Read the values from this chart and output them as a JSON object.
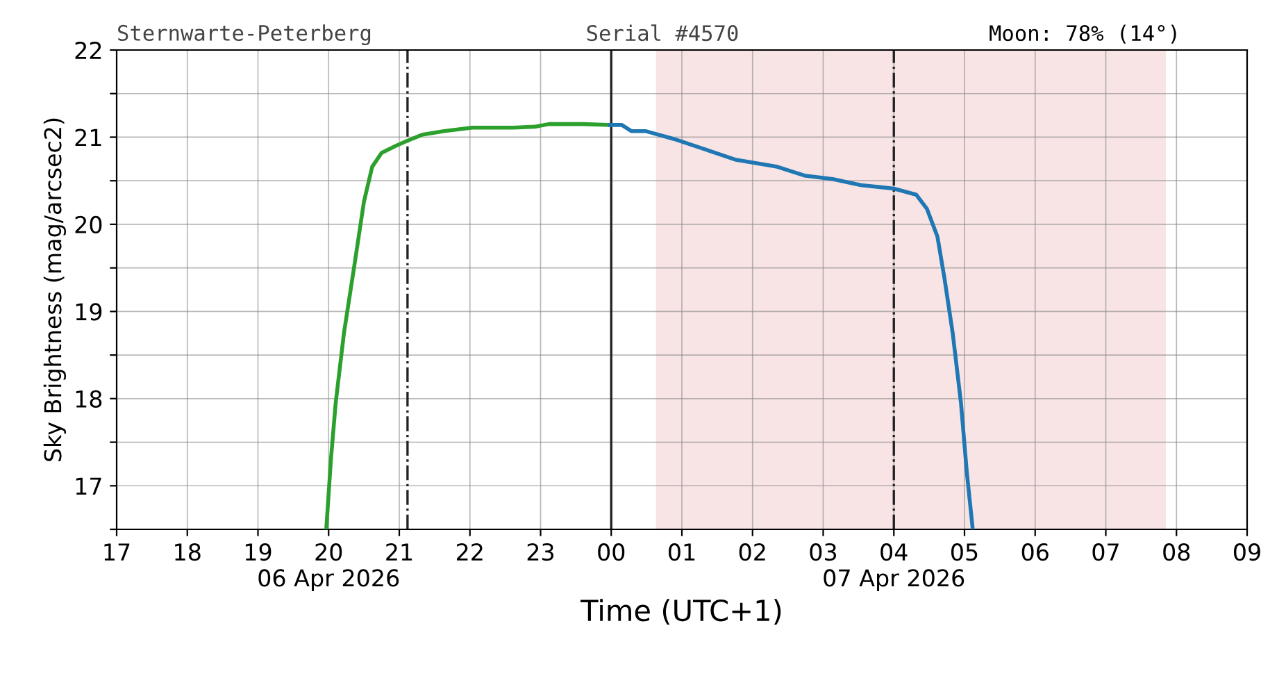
{
  "chart_data": {
    "type": "line",
    "ylabel": "Sky Brightness (mag/arcsec2)",
    "xlabel": "Time (UTC+1)",
    "annotations": [
      "Sternwarte-Peterberg",
      "Serial #4570",
      "Moon: 78% (14°)"
    ],
    "series": [
      {
        "color": "#2ca02c",
        "x": [
          "2026-04-06T19:58",
          "2026-04-06T20:02",
          "2026-04-06T20:06",
          "2026-04-06T20:13",
          "2026-04-06T20:22",
          "2026-04-06T20:30",
          "2026-04-06T20:37",
          "2026-04-06T20:45",
          "2026-04-06T20:57",
          "2026-04-06T21:07",
          "2026-04-06T21:20",
          "2026-04-06T21:38",
          "2026-04-06T22:02",
          "2026-04-06T22:37",
          "2026-04-06T22:55",
          "2026-04-06T23:07",
          "2026-04-06T23:36",
          "2026-04-06T23:59"
        ],
        "values": [
          16.5,
          17.31,
          17.95,
          18.75,
          19.54,
          20.26,
          20.66,
          20.82,
          20.9,
          20.96,
          21.03,
          21.07,
          21.11,
          21.11,
          21.12,
          21.15,
          21.15,
          21.14
        ]
      },
      {
        "color": "#1f77b4",
        "x": [
          "2026-04-06T23:59",
          "2026-04-07T00:09",
          "2026-04-07T00:17",
          "2026-04-07T00:29",
          "2026-04-07T00:53",
          "2026-04-07T01:22",
          "2026-04-07T01:46",
          "2026-04-07T02:21",
          "2026-04-07T02:44",
          "2026-04-07T03:08",
          "2026-04-07T03:32",
          "2026-04-07T04:00",
          "2026-04-07T04:19",
          "2026-04-07T04:28",
          "2026-04-07T04:37",
          "2026-04-07T04:43",
          "2026-04-07T04:50",
          "2026-04-07T04:57",
          "2026-04-07T05:02",
          "2026-04-07T05:07"
        ],
        "values": [
          21.14,
          21.14,
          21.07,
          21.07,
          20.98,
          20.85,
          20.74,
          20.66,
          20.56,
          20.52,
          20.45,
          20.41,
          20.34,
          20.18,
          19.86,
          19.38,
          18.75,
          17.95,
          17.15,
          16.5
        ]
      }
    ],
    "xlim": [
      "2026-04-06T17:00",
      "2026-04-07T09:00"
    ],
    "xticks": [
      {
        "value": "2026-04-06T17:00",
        "label": "17"
      },
      {
        "value": "2026-04-06T18:00",
        "label": "18"
      },
      {
        "value": "2026-04-06T19:00",
        "label": "19"
      },
      {
        "value": "2026-04-06T20:00",
        "label": "20\n06 Apr 2026"
      },
      {
        "value": "2026-04-06T21:00",
        "label": "21"
      },
      {
        "value": "2026-04-06T22:00",
        "label": "22"
      },
      {
        "value": "2026-04-06T23:00",
        "label": "23"
      },
      {
        "value": "2026-04-07T00:00",
        "label": "00"
      },
      {
        "value": "2026-04-07T01:00",
        "label": "01"
      },
      {
        "value": "2026-04-07T02:00",
        "label": "02"
      },
      {
        "value": "2026-04-07T03:00",
        "label": "03"
      },
      {
        "value": "2026-04-07T04:00",
        "label": "04\n07 Apr 2026"
      },
      {
        "value": "2026-04-07T05:00",
        "label": "05"
      },
      {
        "value": "2026-04-07T06:00",
        "label": "06"
      },
      {
        "value": "2026-04-07T07:00",
        "label": "07"
      },
      {
        "value": "2026-04-07T08:00",
        "label": "08"
      },
      {
        "value": "2026-04-07T09:00",
        "label": "09"
      }
    ],
    "ylim": [
      16.5,
      22
    ],
    "yticks": [
      {
        "value": 16.5,
        "label": null
      },
      17,
      {
        "value": 17.5,
        "label": null
      },
      18,
      {
        "value": 18.5,
        "label": null
      },
      19,
      {
        "value": 19.5,
        "label": null
      },
      20,
      {
        "value": 20.5,
        "label": null
      },
      21,
      {
        "value": 21.5,
        "label": null
      },
      22
    ],
    "ref_lines": [
      {
        "axis": "x",
        "value": "2026-04-06T21:07",
        "color": "#222222",
        "line_style": "dashdot"
      },
      {
        "axis": "x",
        "value": "2026-04-07T00:00",
        "color": "#222222",
        "line_style": "solid"
      },
      {
        "axis": "x",
        "value": "2026-04-07T04:00",
        "color": "#222222",
        "line_style": "dashdot"
      }
    ],
    "bands": [
      {
        "axis": "x",
        "from": "2026-04-07T00:38",
        "to": "2026-04-07T07:51",
        "color": "#f8e4e4"
      }
    ],
    "grid": true,
    "legend": false,
    "marker": "none",
    "line_style": "solid"
  }
}
